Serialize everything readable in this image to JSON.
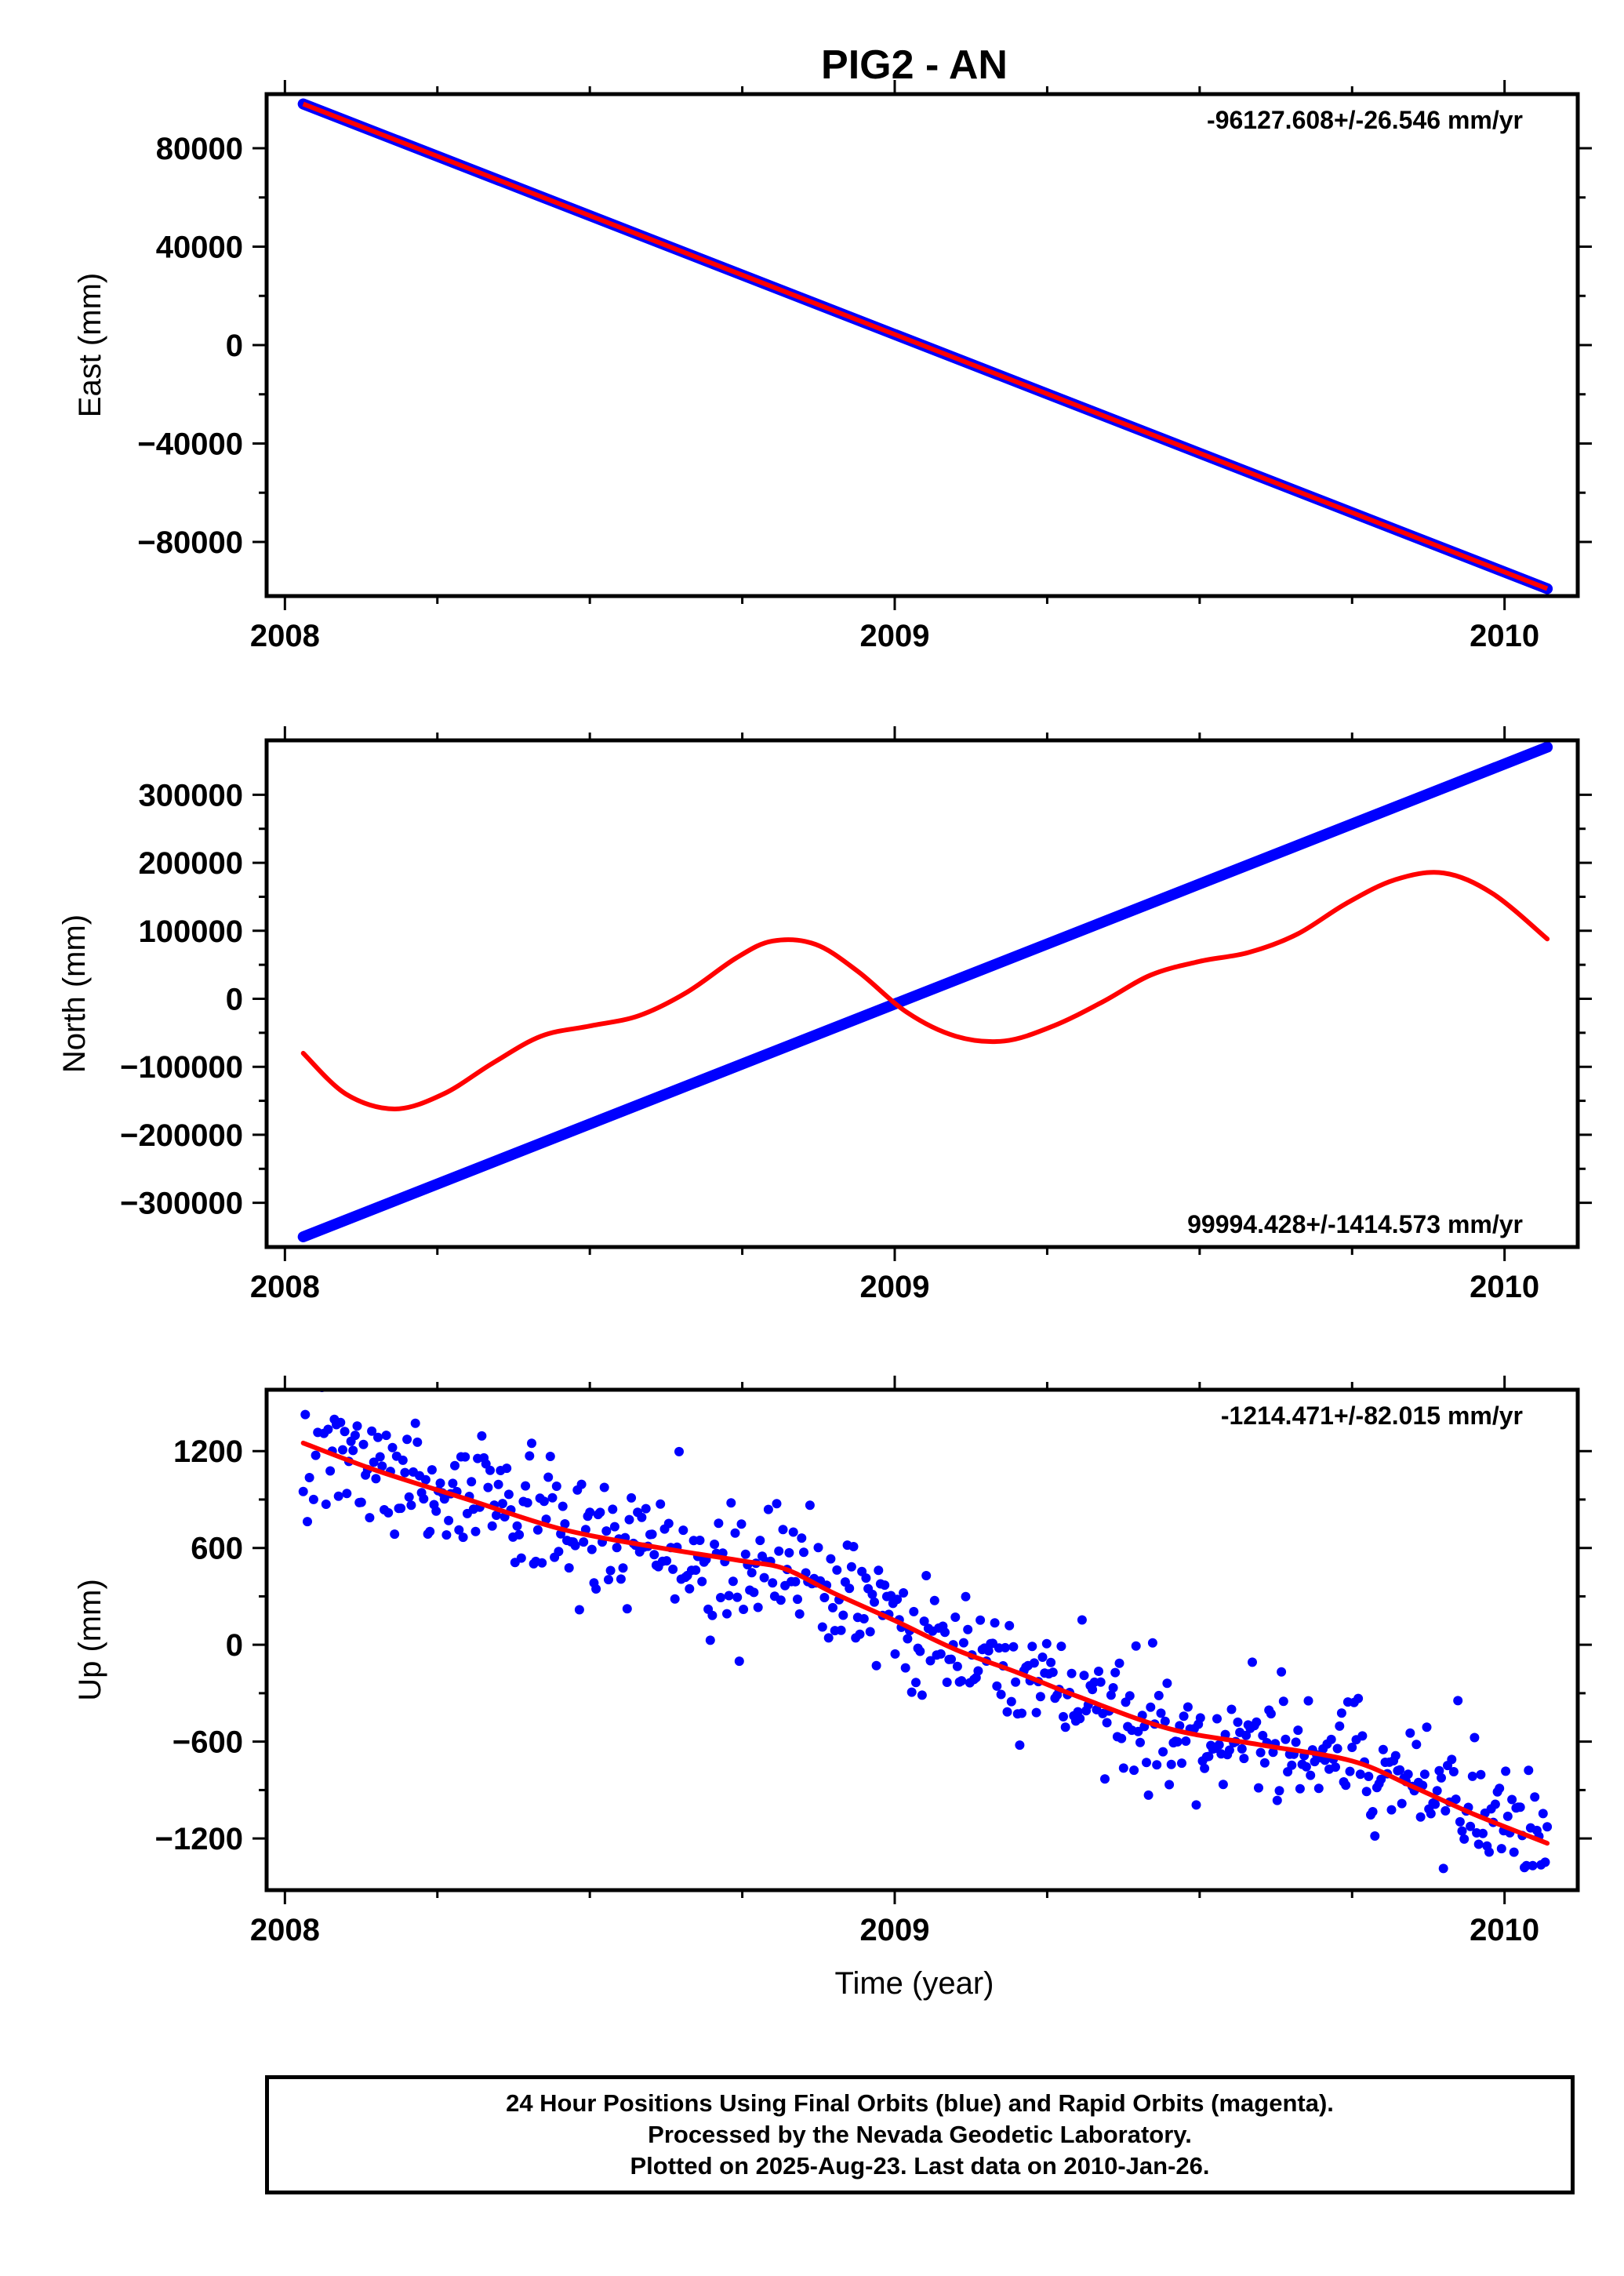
{
  "title": "PIG2 - AN",
  "xlabel": "Time (year)",
  "footer": {
    "line1": "24 Hour Positions Using Final Orbits (blue) and Rapid Orbits (magenta).",
    "line2": "Processed by the Nevada Geodetic Laboratory.",
    "line3": "Plotted on 2025-Aug-23. Last data on 2010-Jan-26."
  },
  "colors": {
    "observations": "#0000ff",
    "fit": "#ff0000",
    "frame": "#000000"
  },
  "chart_data": [
    {
      "type": "line",
      "ylabel": "East (mm)",
      "rate": "-96127.608+/-26.546 mm/yr",
      "rate_position": "top-right",
      "xlim": [
        2007.97,
        2010.12
      ],
      "ylim": [
        -102000,
        102000
      ],
      "x_ticks": [
        "2008",
        "2009",
        "2010"
      ],
      "y_ticks": [
        -80000,
        -40000,
        0,
        40000,
        80000
      ],
      "y_tick_labels": [
        "−80000",
        "−40000",
        "0",
        "40000",
        "80000"
      ],
      "series": [
        {
          "style": "thick-line",
          "color": "#0000ff",
          "x": [
            2008.03,
            2010.07
          ],
          "y": [
            98000,
            -99000
          ]
        },
        {
          "style": "line",
          "color": "#ff0000",
          "x": [
            2008.03,
            2010.07
          ],
          "y": [
            98000,
            -99000
          ]
        }
      ]
    },
    {
      "type": "line",
      "ylabel": "North (mm)",
      "rate": "99994.428+/-1414.573 mm/yr",
      "rate_position": "bottom-right",
      "xlim": [
        2007.97,
        2010.12
      ],
      "ylim": [
        -365000,
        380000
      ],
      "x_ticks": [
        "2008",
        "2009",
        "2010"
      ],
      "y_ticks": [
        -300000,
        -200000,
        -100000,
        0,
        100000,
        200000,
        300000
      ],
      "y_tick_labels": [
        "−300000",
        "−200000",
        "−100000",
        "0",
        "100000",
        "200000",
        "300000"
      ],
      "series": [
        {
          "style": "thick-line",
          "color": "#0000ff",
          "x": [
            2008.03,
            2010.07
          ],
          "y": [
            -350000,
            370000
          ]
        },
        {
          "style": "smooth-line",
          "color": "#ff0000",
          "x": [
            2008.03,
            2008.1,
            2008.18,
            2008.26,
            2008.34,
            2008.42,
            2008.5,
            2008.58,
            2008.66,
            2008.74,
            2008.8,
            2008.87,
            2008.94,
            2009.02,
            2009.1,
            2009.18,
            2009.26,
            2009.34,
            2009.42,
            2009.5,
            2009.58,
            2009.66,
            2009.74,
            2009.82,
            2009.9,
            2009.98,
            2010.07
          ],
          "y": [
            -80000,
            -140000,
            -162000,
            -140000,
            -95000,
            -55000,
            -40000,
            -25000,
            10000,
            60000,
            85000,
            80000,
            40000,
            -20000,
            -55000,
            -62000,
            -40000,
            -5000,
            35000,
            55000,
            68000,
            95000,
            140000,
            175000,
            185000,
            155000,
            88000
          ]
        }
      ]
    },
    {
      "type": "scatter",
      "ylabel": "Up (mm)",
      "rate": "-1214.471+/-82.015 mm/yr",
      "rate_position": "top-right",
      "xlim": [
        2007.97,
        2010.12
      ],
      "ylim": [
        -1520,
        1580
      ],
      "x_ticks": [
        "2008",
        "2009",
        "2010"
      ],
      "y_ticks": [
        -1200,
        -600,
        0,
        600,
        1200
      ],
      "y_tick_labels": [
        "−1200",
        "−600",
        "0",
        "600",
        "1200"
      ],
      "n_points": 600,
      "series": [
        {
          "style": "points",
          "color": "#0000ff",
          "x_range": [
            2008.03,
            2010.07
          ],
          "trend": "follows fit with ~200 mm scatter"
        },
        {
          "style": "smooth-line",
          "color": "#ff0000",
          "x": [
            2008.03,
            2008.15,
            2008.3,
            2008.45,
            2008.6,
            2008.75,
            2008.82,
            2008.9,
            2009.0,
            2009.1,
            2009.2,
            2009.3,
            2009.45,
            2009.6,
            2009.75,
            2009.85,
            2009.95,
            2010.07
          ],
          "y": [
            1250,
            1080,
            900,
            720,
            610,
            520,
            470,
            320,
            150,
            -30,
            -170,
            -320,
            -520,
            -620,
            -720,
            -880,
            -1050,
            -1230
          ]
        }
      ]
    }
  ]
}
